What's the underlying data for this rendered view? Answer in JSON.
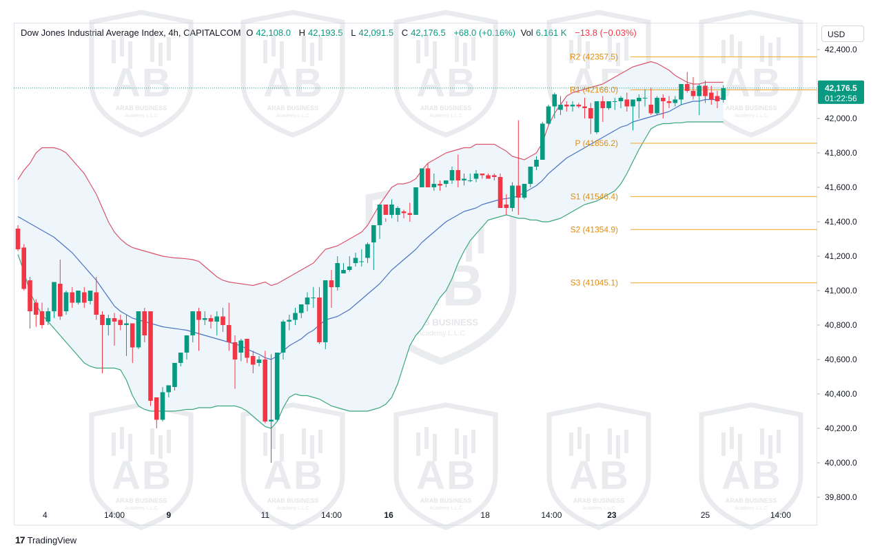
{
  "header": {
    "symbol": "Dow Jones Industrial Average Index, 4h, CAPITALCOM",
    "o_label": "O",
    "o_value": "42,108.0",
    "h_label": "H",
    "h_value": "42,193.5",
    "l_label": "L",
    "l_value": "42,091.5",
    "c_label": "C",
    "c_value": "42,176.5",
    "change": "+68.0 (+0.16%)",
    "vol_label": "Vol",
    "vol_value": "6.161 K",
    "vol_change": "−13.8 (−0.03%)"
  },
  "currency_button": "USD",
  "branding": {
    "logo_mark": "17",
    "logo_text": "TradingView"
  },
  "watermark": {
    "line1": "ARAB BUSINESS",
    "line2": "Academy L.L.C"
  },
  "price_label": {
    "price": "42,176.5",
    "countdown": "01:22:56"
  },
  "colors": {
    "up": "#089981",
    "down": "#f23645",
    "upper_band": "#d9536a",
    "lower_band": "#3aa57a",
    "basis": "#4a72c2",
    "band_fill": "#eef6fc",
    "pivot": "#f0a623",
    "pivot_text": "#e08d10"
  },
  "chart_data": {
    "type": "candlestick",
    "timeframe": "4h",
    "ylim": [
      39700,
      42500
    ],
    "y_ticks": [
      "42,400.0",
      "42,200.0",
      "42,000.0",
      "41,800.0",
      "41,600.0",
      "41,400.0",
      "41,200.0",
      "41,000.0",
      "40,800.0",
      "40,600.0",
      "40,400.0",
      "40,200.0",
      "40,000.0",
      "39,800.0"
    ],
    "x_ticks": [
      {
        "label": "4",
        "bar": 4.5,
        "bold": false
      },
      {
        "label": "14:00",
        "bar": 16,
        "bold": false
      },
      {
        "label": "9",
        "bar": 25,
        "bold": true
      },
      {
        "label": "11",
        "bar": 41,
        "bold": false
      },
      {
        "label": "14:00",
        "bar": 52,
        "bold": false
      },
      {
        "label": "16",
        "bar": 61.5,
        "bold": true
      },
      {
        "label": "18",
        "bar": 77.5,
        "bold": false
      },
      {
        "label": "14:00",
        "bar": 88.5,
        "bold": false
      },
      {
        "label": "23",
        "bar": 98.5,
        "bold": true
      },
      {
        "label": "25",
        "bar": 114,
        "bold": false
      },
      {
        "label": "14:00",
        "bar": 126.5,
        "bold": false
      }
    ],
    "pivots": [
      {
        "name": "R2",
        "value": 42357.5,
        "label": "R2 (42357.5)"
      },
      {
        "name": "R1",
        "value": 42166.0,
        "label": "R1 (42166.0)"
      },
      {
        "name": "P",
        "value": 41856.2,
        "label": "P (41856.2)"
      },
      {
        "name": "S1",
        "value": 41546.4,
        "label": "S1 (41546.4)"
      },
      {
        "name": "S2",
        "value": 41354.9,
        "label": "S2 (41354.9)"
      },
      {
        "name": "S3",
        "value": 41045.1,
        "label": "S3 (41045.1)"
      }
    ],
    "last_price": 42176.5,
    "candles": [
      [
        41360,
        41380,
        41240,
        41230
      ],
      [
        41250,
        41270,
        41010,
        41000
      ],
      [
        41060,
        41080,
        40880,
        40780
      ],
      [
        40930,
        40950,
        40860,
        40790
      ],
      [
        40880,
        40930,
        40800,
        40780
      ],
      [
        40820,
        40900,
        40880,
        40800
      ],
      [
        40880,
        41040,
        41050,
        40840
      ],
      [
        41040,
        41180,
        40850,
        40830
      ],
      [
        40880,
        41000,
        40990,
        40860
      ],
      [
        40990,
        41020,
        40930,
        40900
      ],
      [
        40930,
        41000,
        41000,
        40920
      ],
      [
        40990,
        41020,
        40930,
        40900
      ],
      [
        40940,
        41000,
        41000,
        40920
      ],
      [
        40990,
        41080,
        40860,
        40830
      ],
      [
        40860,
        40880,
        40800,
        40520
      ],
      [
        40800,
        40860,
        40840,
        40740
      ],
      [
        40840,
        40870,
        40820,
        40680
      ],
      [
        40830,
        40860,
        40800,
        40770
      ],
      [
        40800,
        40860,
        40810,
        40620
      ],
      [
        40810,
        40810,
        40670,
        40580
      ],
      [
        40670,
        40870,
        40880,
        40660
      ],
      [
        40880,
        40900,
        40740,
        40700
      ],
      [
        40880,
        40880,
        40360,
        40330
      ],
      [
        40380,
        40380,
        40250,
        40200
      ],
      [
        40250,
        40440,
        40410,
        40240
      ],
      [
        40410,
        40450,
        40450,
        40380
      ],
      [
        40440,
        40580,
        40580,
        40420
      ],
      [
        40580,
        40640,
        40640,
        40560
      ],
      [
        40640,
        40680,
        40740,
        40600
      ],
      [
        40740,
        40880,
        40880,
        40700
      ],
      [
        40880,
        40900,
        40830,
        40650
      ],
      [
        40830,
        40880,
        40840,
        40800
      ],
      [
        40840,
        40860,
        40820,
        40780
      ],
      [
        40820,
        40880,
        40850,
        40740
      ],
      [
        40850,
        40900,
        40800,
        40760
      ],
      [
        40800,
        40930,
        40700,
        40650
      ],
      [
        40700,
        40740,
        40600,
        40430
      ],
      [
        40640,
        40720,
        40710,
        40590
      ],
      [
        40720,
        40710,
        40610,
        40580
      ],
      [
        40620,
        40650,
        40570,
        40520
      ],
      [
        40580,
        40620,
        40600,
        40560
      ],
      [
        40600,
        40650,
        40240,
        40230
      ],
      [
        40240,
        40630,
        40250,
        40000
      ],
      [
        40250,
        40640,
        40640,
        40240
      ],
      [
        40640,
        40830,
        40820,
        40600
      ],
      [
        40820,
        40860,
        40830,
        40770
      ],
      [
        40830,
        40900,
        40870,
        40800
      ],
      [
        40870,
        40920,
        40920,
        40840
      ],
      [
        40920,
        40990,
        40960,
        40880
      ],
      [
        40960,
        41020,
        40960,
        40900
      ],
      [
        40960,
        41020,
        40700,
        40690
      ],
      [
        40700,
        41050,
        41060,
        40660
      ],
      [
        41060,
        41120,
        41020,
        40900
      ],
      [
        41020,
        41200,
        41160,
        41000
      ],
      [
        41100,
        41160,
        41120,
        41100
      ],
      [
        41120,
        41200,
        41140,
        41110
      ],
      [
        41160,
        41220,
        41190,
        41140
      ],
      [
        41170,
        41240,
        41170,
        41140
      ],
      [
        41190,
        41280,
        41270,
        41160
      ],
      [
        41280,
        41380,
        41380,
        41120
      ],
      [
        41380,
        41500,
        41500,
        41300
      ],
      [
        41500,
        41420,
        41440,
        41400
      ],
      [
        41440,
        41530,
        41500,
        41420
      ],
      [
        41440,
        41490,
        41480,
        41400
      ],
      [
        41460,
        41470,
        41450,
        41420
      ],
      [
        41450,
        41510,
        41440,
        41400
      ],
      [
        41440,
        41600,
        41600,
        41440
      ],
      [
        41600,
        41700,
        41710,
        41600
      ],
      [
        41710,
        41740,
        41600,
        41600
      ],
      [
        41600,
        41680,
        41620,
        41580
      ],
      [
        41620,
        41640,
        41610,
        41580
      ],
      [
        41620,
        41630,
        41640,
        41600
      ],
      [
        41640,
        41720,
        41700,
        41620
      ],
      [
        41700,
        41790,
        41640,
        41600
      ],
      [
        41640,
        41680,
        41650,
        41610
      ],
      [
        41640,
        41680,
        41640,
        41630
      ],
      [
        41650,
        41700,
        41680,
        41630
      ],
      [
        41680,
        41680,
        41670,
        41650
      ],
      [
        41670,
        41680,
        41650,
        41650
      ],
      [
        41670,
        41680,
        41660,
        41640
      ],
      [
        41660,
        41680,
        41480,
        41480
      ],
      [
        41500,
        41560,
        41480,
        41440
      ],
      [
        41480,
        41630,
        41610,
        41460
      ],
      [
        41610,
        41990,
        41540,
        41440
      ],
      [
        41540,
        41610,
        41620,
        41530
      ],
      [
        41620,
        41720,
        41720,
        41600
      ],
      [
        41720,
        41780,
        41760,
        41700
      ],
      [
        41760,
        41980,
        41970,
        41760
      ],
      [
        41970,
        42080,
        42070,
        41960
      ],
      [
        42070,
        42150,
        42140,
        42000
      ],
      [
        42050,
        42130,
        42080,
        42020
      ],
      [
        42080,
        42100,
        42070,
        42040
      ],
      [
        42070,
        42100,
        42080,
        42040
      ],
      [
        42080,
        42090,
        42070,
        42060
      ],
      [
        42070,
        42120,
        42060,
        42000
      ],
      [
        42060,
        42090,
        42000,
        41910
      ],
      [
        41920,
        42100,
        42100,
        41910
      ],
      [
        42100,
        42130,
        42060,
        41980
      ],
      [
        42060,
        42100,
        42100,
        42050
      ],
      [
        42100,
        42120,
        42100,
        42050
      ],
      [
        42100,
        42130,
        42120,
        42060
      ],
      [
        42110,
        42150,
        42070,
        42040
      ],
      [
        42070,
        42100,
        42110,
        41930
      ],
      [
        42100,
        42140,
        42120,
        42000
      ],
      [
        42120,
        42170,
        42120,
        42070
      ],
      [
        42080,
        42180,
        42030,
        42020
      ],
      [
        42030,
        42130,
        42120,
        42020
      ],
      [
        42120,
        42140,
        42100,
        42000
      ],
      [
        42100,
        42130,
        42090,
        42060
      ],
      [
        42090,
        42130,
        42110,
        42070
      ],
      [
        42110,
        42200,
        42200,
        42080
      ],
      [
        42200,
        42270,
        42160,
        42150
      ],
      [
        42160,
        42240,
        42130,
        42110
      ],
      [
        42130,
        42200,
        42190,
        42020
      ],
      [
        42190,
        42220,
        42130,
        42090
      ],
      [
        42150,
        42190,
        42110,
        42080
      ],
      [
        42130,
        42160,
        42100,
        42060
      ],
      [
        42108,
        42193.5,
        42176.5,
        42091.5
      ]
    ],
    "bollinger": {
      "upper": [
        41645,
        41700,
        41740,
        41800,
        41830,
        41830,
        41830,
        41820,
        41800,
        41760,
        41720,
        41680,
        41620,
        41560,
        41480,
        41400,
        41340,
        41300,
        41270,
        41250,
        41240,
        41230,
        41220,
        41210,
        41200,
        41195,
        41190,
        41188,
        41185,
        41180,
        41170,
        41140,
        41110,
        41080,
        41060,
        41050,
        41045,
        41040,
        41035,
        41030,
        41040,
        41050,
        41030,
        41040,
        41060,
        41080,
        41100,
        41120,
        41140,
        41160,
        41200,
        41240,
        41250,
        41260,
        41280,
        41300,
        41320,
        41340,
        41380,
        41440,
        41500,
        41550,
        41600,
        41620,
        41620,
        41630,
        41650,
        41700,
        41740,
        41760,
        41780,
        41800,
        41810,
        41820,
        41830,
        41830,
        41850,
        41850,
        41850,
        41850,
        41830,
        41810,
        41780,
        41770,
        41760,
        41780,
        41800,
        41860,
        41960,
        42030,
        42080,
        42130,
        42150,
        42160,
        42170,
        42180,
        42190,
        42200,
        42220,
        42240,
        42260,
        42280,
        42300,
        42310,
        42320,
        42330,
        42320,
        42300,
        42280,
        42250,
        42230,
        42210,
        42200,
        42200,
        42210,
        42210,
        42210,
        42210
      ],
      "basis": [
        41430,
        41410,
        41390,
        41370,
        41350,
        41330,
        41310,
        41280,
        41250,
        41220,
        41180,
        41140,
        41100,
        41060,
        41010,
        40960,
        40910,
        40880,
        40860,
        40840,
        40830,
        40820,
        40810,
        40800,
        40790,
        40785,
        40780,
        40775,
        40770,
        40760,
        40750,
        40740,
        40730,
        40720,
        40710,
        40700,
        40690,
        40680,
        40660,
        40645,
        40630,
        40610,
        40600,
        40620,
        40650,
        40680,
        40700,
        40720,
        40750,
        40770,
        40800,
        40830,
        40840,
        40850,
        40870,
        40890,
        40920,
        40950,
        40980,
        41010,
        41040,
        41080,
        41120,
        41150,
        41180,
        41210,
        41240,
        41280,
        41310,
        41340,
        41370,
        41400,
        41420,
        41440,
        41460,
        41470,
        41480,
        41500,
        41510,
        41520,
        41530,
        41535,
        41540,
        41550,
        41570,
        41590,
        41610,
        41640,
        41680,
        41710,
        41740,
        41770,
        41790,
        41810,
        41830,
        41850,
        41870,
        41890,
        41910,
        41930,
        41950,
        41960,
        41980,
        41990,
        42000,
        42010,
        42020,
        42030,
        42040,
        42060,
        42080,
        42090,
        42100,
        42100,
        42110,
        42110,
        42110,
        42120
      ],
      "lower": [
        41210,
        41110,
        40990,
        40920,
        40860,
        40820,
        40780,
        40740,
        40700,
        40660,
        40620,
        40580,
        40560,
        40550,
        40550,
        40550,
        40550,
        40540,
        40480,
        40390,
        40330,
        40310,
        40300,
        40300,
        40300,
        40300,
        40300,
        40305,
        40310,
        40310,
        40320,
        40320,
        40320,
        40330,
        40330,
        40330,
        40330,
        40320,
        40300,
        40270,
        40240,
        40210,
        40200,
        40240,
        40320,
        40380,
        40400,
        40390,
        40390,
        40380,
        40370,
        40350,
        40330,
        40320,
        40310,
        40300,
        40300,
        40300,
        40300,
        40310,
        40320,
        40340,
        40380,
        40460,
        40570,
        40680,
        40740,
        40780,
        40840,
        40900,
        40960,
        41000,
        41070,
        41160,
        41230,
        41290,
        41330,
        41370,
        41410,
        41420,
        41430,
        41440,
        41430,
        41420,
        41420,
        41410,
        41410,
        41400,
        41400,
        41410,
        41420,
        41440,
        41460,
        41480,
        41500,
        41510,
        41520,
        41540,
        41560,
        41580,
        41620,
        41680,
        41750,
        41820,
        41880,
        41940,
        41960,
        41970,
        41970,
        41975,
        41975,
        41980,
        41980,
        41980,
        41980,
        41980,
        41980,
        41980
      ]
    }
  }
}
